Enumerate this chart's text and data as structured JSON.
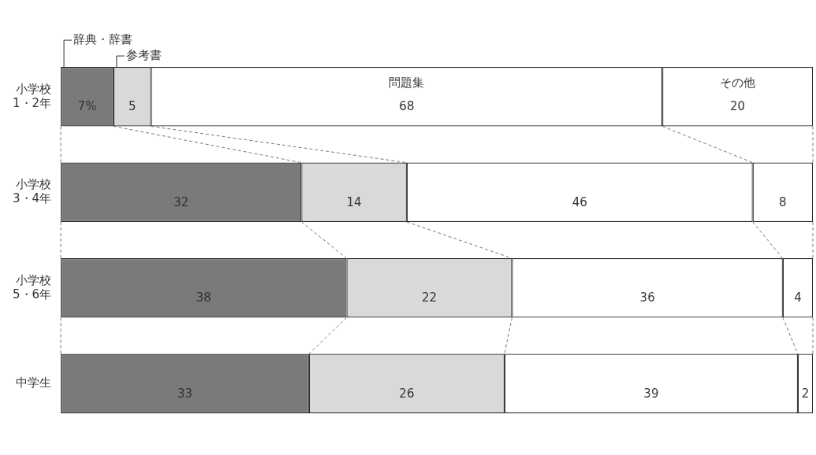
{
  "chart_data": {
    "type": "bar",
    "orientation": "horizontal",
    "stacked": true,
    "tick_labels": "y",
    "legend": false,
    "categories": [
      "小学校\n1・2年",
      "小学校\n3・4年",
      "小学校\n5・6年",
      "中学生"
    ],
    "xlim": [
      0,
      100
    ],
    "series": [
      {
        "name": "辞典・辞書",
        "color": "#7a7a7a",
        "values": [
          7,
          32,
          38,
          33
        ],
        "value_labels": [
          "7%",
          "32",
          "38",
          "33"
        ]
      },
      {
        "name": "参考書",
        "color": "#d9d9d9",
        "values": [
          5,
          14,
          22,
          26
        ],
        "value_labels": [
          "5",
          "14",
          "22",
          "26"
        ]
      },
      {
        "name": "問題集",
        "color": "#ffffff",
        "values": [
          68,
          46,
          36,
          39
        ],
        "value_labels": [
          "68",
          "46",
          "36",
          "39"
        ]
      },
      {
        "name": "その他",
        "color": "#ffffff",
        "values": [
          20,
          8,
          4,
          2
        ],
        "value_labels": [
          "20",
          "8",
          "4",
          "2"
        ]
      }
    ]
  }
}
